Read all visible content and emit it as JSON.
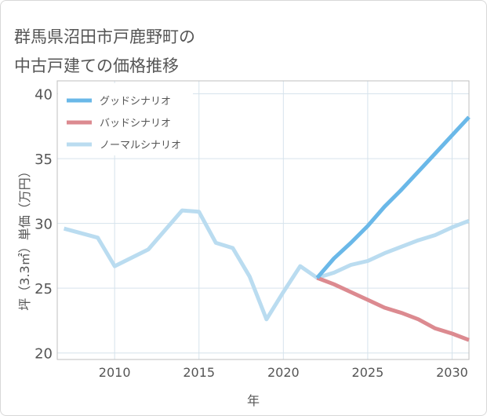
{
  "title_line1": "群馬県沼田市戸鹿野町の",
  "title_line2": "中古戸建ての価格推移",
  "chart_data": {
    "type": "line",
    "xlabel": "年",
    "ylabel": "坪（3.3㎡）単価（万円）",
    "xlim": [
      2006.6,
      2031
    ],
    "ylim": [
      19.5,
      41
    ],
    "xticks": [
      2010,
      2015,
      2020,
      2025,
      2030
    ],
    "yticks": [
      20,
      25,
      30,
      35,
      40
    ],
    "grid": true,
    "legend_position": "top-left",
    "series": [
      {
        "name": "グッドシナリオ",
        "color": "#6ab8e8",
        "x": [
          2022,
          2023,
          2024,
          2025,
          2026,
          2027,
          2028,
          2029,
          2030,
          2031
        ],
        "values": [
          25.8,
          27.3,
          28.5,
          29.8,
          31.3,
          32.6,
          34.0,
          35.4,
          36.8,
          38.2
        ]
      },
      {
        "name": "バッドシナリオ",
        "color": "#dc8a90",
        "x": [
          2022,
          2023,
          2024,
          2025,
          2026,
          2027,
          2028,
          2029,
          2030,
          2031
        ],
        "values": [
          25.8,
          25.3,
          24.7,
          24.1,
          23.5,
          23.1,
          22.6,
          21.9,
          21.5,
          21.0
        ]
      },
      {
        "name": "ノーマルシナリオ",
        "color": "#badcf0",
        "x": [
          2007,
          2009,
          2010,
          2012,
          2014,
          2015,
          2016,
          2017,
          2018,
          2019,
          2020,
          2021,
          2022,
          2023,
          2024,
          2025,
          2026,
          2027,
          2028,
          2029,
          2030,
          2031
        ],
        "values": [
          29.6,
          28.9,
          26.7,
          28.0,
          31.0,
          30.9,
          28.5,
          28.1,
          25.9,
          22.6,
          24.7,
          26.7,
          25.8,
          26.2,
          26.8,
          27.1,
          27.7,
          28.2,
          28.7,
          29.1,
          29.7,
          30.2
        ]
      }
    ]
  }
}
